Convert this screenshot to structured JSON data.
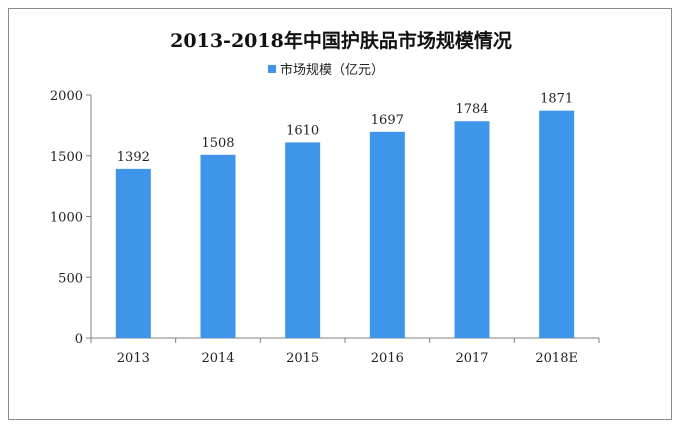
{
  "chart_data": {
    "type": "bar",
    "title": "2013-2018年中国护肤品市场规模情况",
    "categories": [
      "2013",
      "2014",
      "2015",
      "2016",
      "2017",
      "2018E"
    ],
    "series": [
      {
        "name": "市场规模（亿元）",
        "values": [
          1392,
          1508,
          1610,
          1697,
          1784,
          1871
        ]
      }
    ],
    "data_labels": [
      "1392",
      "1508",
      "1610",
      "1697",
      "1784",
      "1871"
    ],
    "y_ticks": [
      "0",
      "500",
      "1000",
      "1500",
      "2000"
    ],
    "ylim": [
      0,
      2000
    ],
    "xlabel": "",
    "ylabel": "",
    "grid": false,
    "legend_position": "top-center",
    "bar_color": "#3e95ea"
  }
}
